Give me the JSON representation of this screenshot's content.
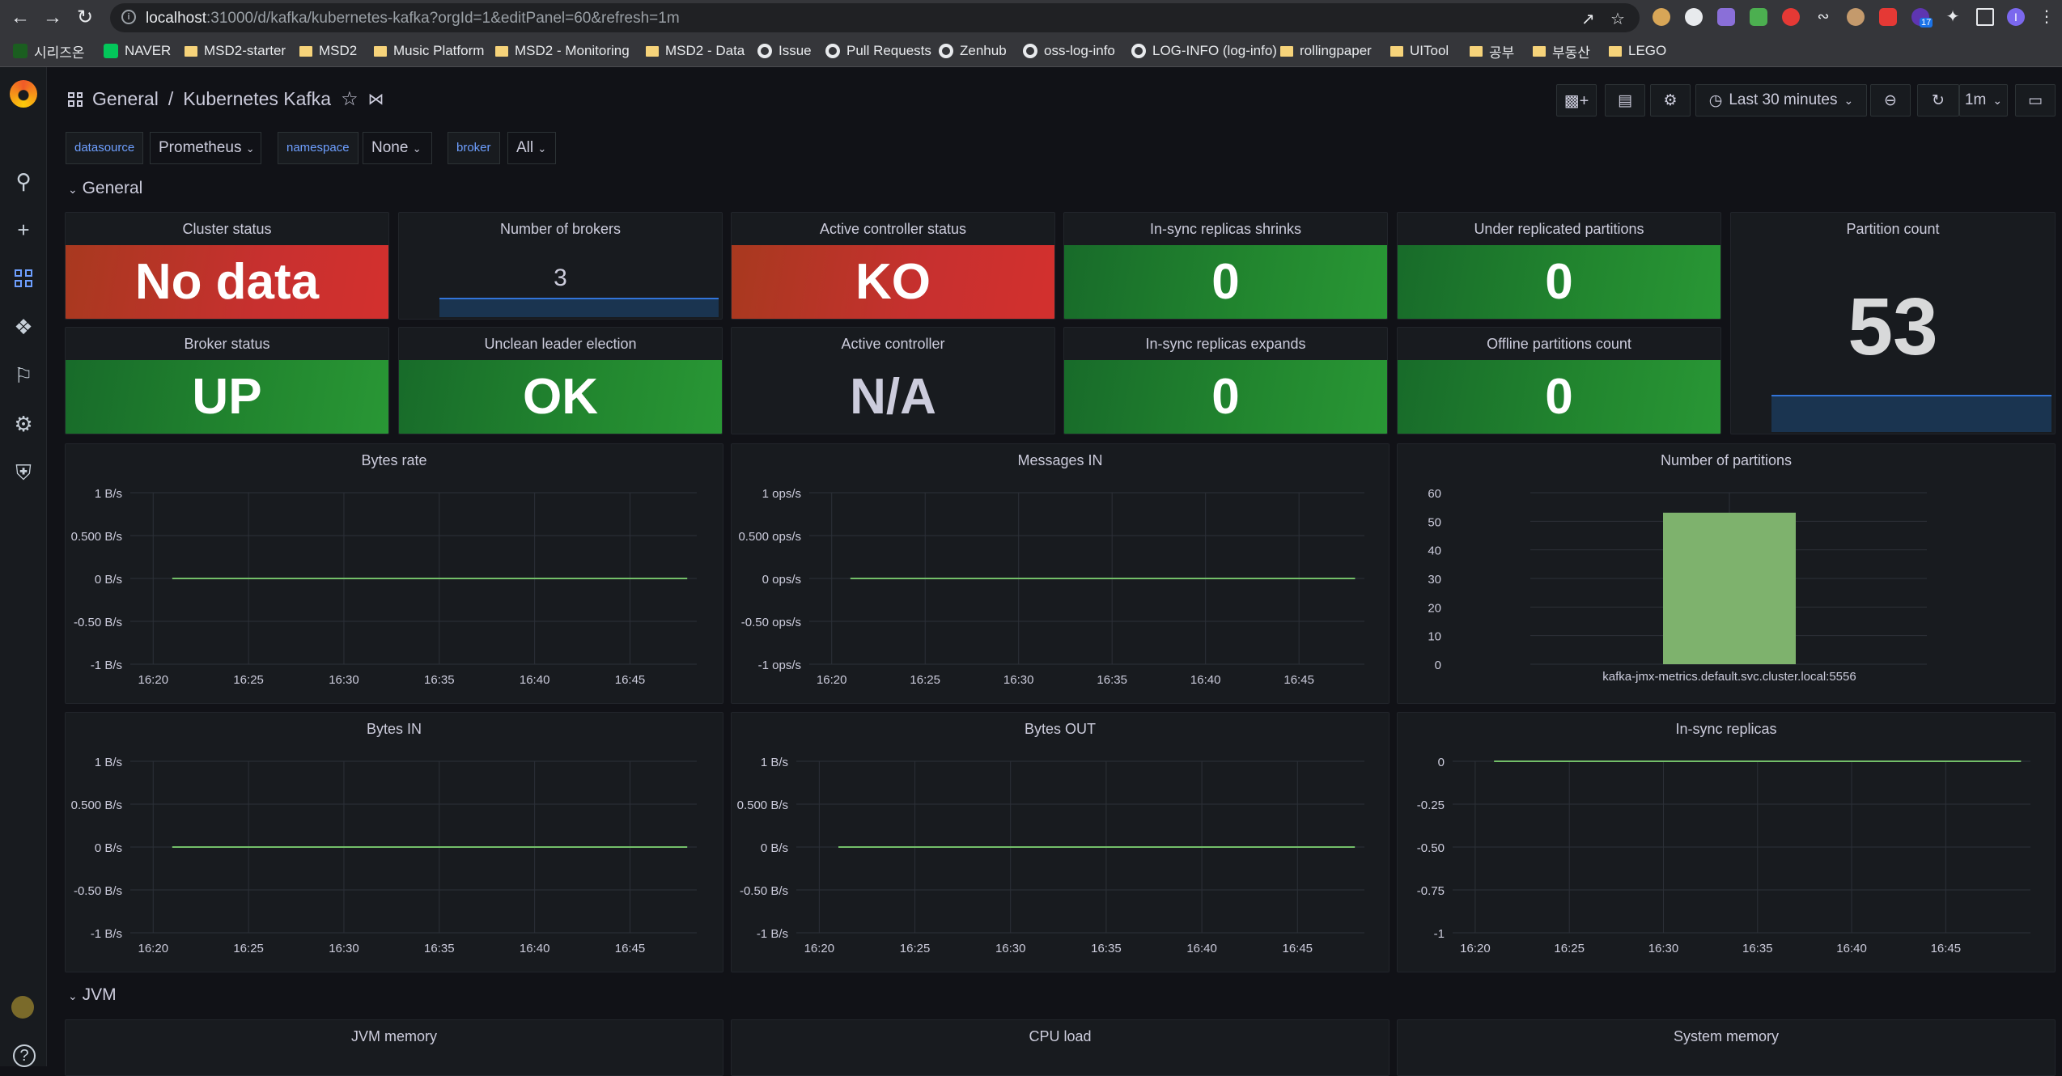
{
  "browser": {
    "url_host": "localhost",
    "url_rest": ":31000/d/kafka/kubernetes-kafka?orgId=1&editPanel=60&refresh=1m",
    "ext_badge": "17",
    "profile_initial": "I",
    "bookmarks": [
      "시리즈온",
      "NAVER",
      "MSD2-starter",
      "MSD2",
      "Music Platform",
      "MSD2 - Monitoring",
      "MSD2 - Data",
      "Issue",
      "Pull Requests",
      "Zenhub",
      "oss-log-info",
      "LOG-INFO (log-info)",
      "rollingpaper",
      "UITool",
      "공부",
      "부동산",
      "LEGO"
    ]
  },
  "header": {
    "folder": "General",
    "separator": "/",
    "title": "Kubernetes Kafka",
    "time_range": "Last 30 minutes",
    "refresh_interval": "1m"
  },
  "variables": [
    {
      "label": "datasource",
      "value": "Prometheus"
    },
    {
      "label": "namespace",
      "value": "None"
    },
    {
      "label": "broker",
      "value": "All"
    }
  ],
  "rows": {
    "general": "General",
    "jvm": "JVM"
  },
  "stats": {
    "cluster_status": {
      "title": "Cluster status",
      "value": "No data"
    },
    "number_of_brokers": {
      "title": "Number of brokers",
      "value": "3"
    },
    "active_controller_status": {
      "title": "Active controller status",
      "value": "KO"
    },
    "isr_shrinks": {
      "title": "In-sync replicas shrinks",
      "value": "0"
    },
    "under_replicated": {
      "title": "Under replicated partitions",
      "value": "0"
    },
    "partition_count": {
      "title": "Partition count",
      "value": "53"
    },
    "broker_status": {
      "title": "Broker status",
      "value": "UP"
    },
    "unclean_leader": {
      "title": "Unclean leader election",
      "value": "OK"
    },
    "active_controller": {
      "title": "Active controller",
      "value": "N/A"
    },
    "isr_expands": {
      "title": "In-sync replicas expands",
      "value": "0"
    },
    "offline_partitions": {
      "title": "Offline partitions count",
      "value": "0"
    }
  },
  "panels": {
    "bytes_rate": {
      "title": "Bytes rate"
    },
    "messages_in": {
      "title": "Messages IN"
    },
    "num_partitions": {
      "title": "Number of partitions"
    },
    "bytes_in": {
      "title": "Bytes IN"
    },
    "bytes_out": {
      "title": "Bytes OUT"
    },
    "isr": {
      "title": "In-sync replicas"
    },
    "jvm_memory": {
      "title": "JVM memory"
    },
    "cpu_load": {
      "title": "CPU load"
    },
    "system_memory": {
      "title": "System memory"
    }
  },
  "chart_data": [
    {
      "type": "line",
      "id": "bytes_rate",
      "title": "Bytes rate",
      "x_ticks": [
        "16:20",
        "16:25",
        "16:30",
        "16:35",
        "16:40",
        "16:45"
      ],
      "y_ticks": [
        "1 B/s",
        "0.500 B/s",
        "0 B/s",
        "-0.50 B/s",
        "-1 B/s"
      ],
      "ylim": [
        -1,
        1
      ],
      "x_start": "16:21",
      "x_end": "16:48",
      "series": [
        {
          "values": [
            0,
            0
          ]
        }
      ],
      "color": "#73bf69"
    },
    {
      "type": "line",
      "id": "messages_in",
      "title": "Messages IN",
      "x_ticks": [
        "16:20",
        "16:25",
        "16:30",
        "16:35",
        "16:40",
        "16:45"
      ],
      "y_ticks": [
        "1 ops/s",
        "0.500 ops/s",
        "0 ops/s",
        "-0.50 ops/s",
        "-1 ops/s"
      ],
      "ylim": [
        -1,
        1
      ],
      "x_start": "16:21",
      "x_end": "16:48",
      "series": [
        {
          "values": [
            0,
            0
          ]
        }
      ],
      "color": "#73bf69"
    },
    {
      "type": "bar",
      "id": "num_partitions",
      "title": "Number of partitions",
      "categories": [
        "kafka-jmx-metrics.default.svc.cluster.local:5556"
      ],
      "values": [
        53
      ],
      "ylim": [
        0,
        60
      ],
      "y_ticks": [
        "60",
        "50",
        "40",
        "30",
        "20",
        "10",
        "0"
      ],
      "color": "#7eb26d"
    },
    {
      "type": "line",
      "id": "bytes_in",
      "title": "Bytes IN",
      "x_ticks": [
        "16:20",
        "16:25",
        "16:30",
        "16:35",
        "16:40",
        "16:45"
      ],
      "y_ticks": [
        "1 B/s",
        "0.500 B/s",
        "0 B/s",
        "-0.50 B/s",
        "-1 B/s"
      ],
      "ylim": [
        -1,
        1
      ],
      "x_start": "16:21",
      "x_end": "16:48",
      "series": [
        {
          "values": [
            0,
            0
          ]
        }
      ],
      "color": "#73bf69"
    },
    {
      "type": "line",
      "id": "bytes_out",
      "title": "Bytes OUT",
      "x_ticks": [
        "16:20",
        "16:25",
        "16:30",
        "16:35",
        "16:40",
        "16:45"
      ],
      "y_ticks": [
        "1 B/s",
        "0.500 B/s",
        "0 B/s",
        "-0.50 B/s",
        "-1 B/s"
      ],
      "ylim": [
        -1,
        1
      ],
      "x_start": "16:21",
      "x_end": "16:48",
      "series": [
        {
          "values": [
            0,
            0
          ]
        }
      ],
      "color": "#73bf69"
    },
    {
      "type": "line",
      "id": "isr",
      "title": "In-sync replicas",
      "x_ticks": [
        "16:20",
        "16:25",
        "16:30",
        "16:35",
        "16:40",
        "16:45"
      ],
      "y_ticks": [
        "0",
        "-0.25",
        "-0.50",
        "-0.75",
        "-1"
      ],
      "ylim": [
        -1,
        0
      ],
      "x_start": "16:21",
      "x_end": "16:49",
      "series": [
        {
          "values": [
            0,
            0
          ]
        }
      ],
      "color": "#73bf69"
    }
  ],
  "colors": {
    "ok": "#299735",
    "bad": "#d3302e",
    "accent": "#6e9fff",
    "series": "#73bf69"
  }
}
